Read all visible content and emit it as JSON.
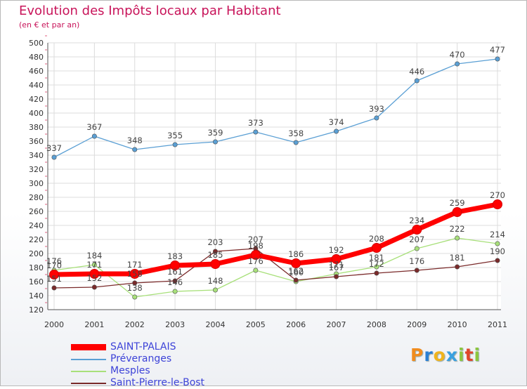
{
  "title": "Evolution des Impôts locaux par Habitant",
  "subtitle": "(en € et par an)",
  "logo": {
    "text": "Proxiti",
    "letters": [
      "P",
      "r",
      "o",
      "x",
      "i",
      "t",
      "i"
    ],
    "colors": [
      "#f08c1e",
      "#2a7fd4",
      "#f0b41e",
      "#3aa0e0",
      "#8cc63f",
      "#e0452a",
      "#8cc63f"
    ]
  },
  "chart_data": {
    "type": "line",
    "categories": [
      "2000",
      "2001",
      "2002",
      "2003",
      "2004",
      "2005",
      "2006",
      "2007",
      "2008",
      "2009",
      "2010",
      "2011"
    ],
    "ylim": [
      120,
      500
    ],
    "yticks": [
      120,
      140,
      160,
      180,
      200,
      220,
      240,
      260,
      280,
      300,
      320,
      340,
      360,
      380,
      400,
      420,
      440,
      460,
      480,
      500
    ],
    "grid": true,
    "legend_position": "bottom-left",
    "series": [
      {
        "name": "Préveranges",
        "color": "#5a9fd4",
        "values": [
          337,
          367,
          348,
          355,
          359,
          373,
          358,
          374,
          393,
          446,
          470,
          477
        ]
      },
      {
        "name": "Mesples",
        "color": "#a8e07a",
        "values": [
          176,
          184,
          138,
          146,
          148,
          176,
          160,
          171,
          181,
          207,
          222,
          214
        ]
      },
      {
        "name": "Saint-Pierre-le-Bost",
        "color": "#7a2a2a",
        "values": [
          151,
          152,
          158,
          161,
          203,
          207,
          162,
          167,
          172,
          176,
          181,
          190
        ]
      },
      {
        "name": "SAINT-PALAIS",
        "color": "#ff0000",
        "values": [
          170,
          171,
          171,
          183,
          185,
          198,
          186,
          192,
          208,
          234,
          259,
          270
        ]
      }
    ],
    "legend_order": [
      "SAINT-PALAIS",
      "Préveranges",
      "Mesples",
      "Saint-Pierre-le-Bost"
    ]
  }
}
